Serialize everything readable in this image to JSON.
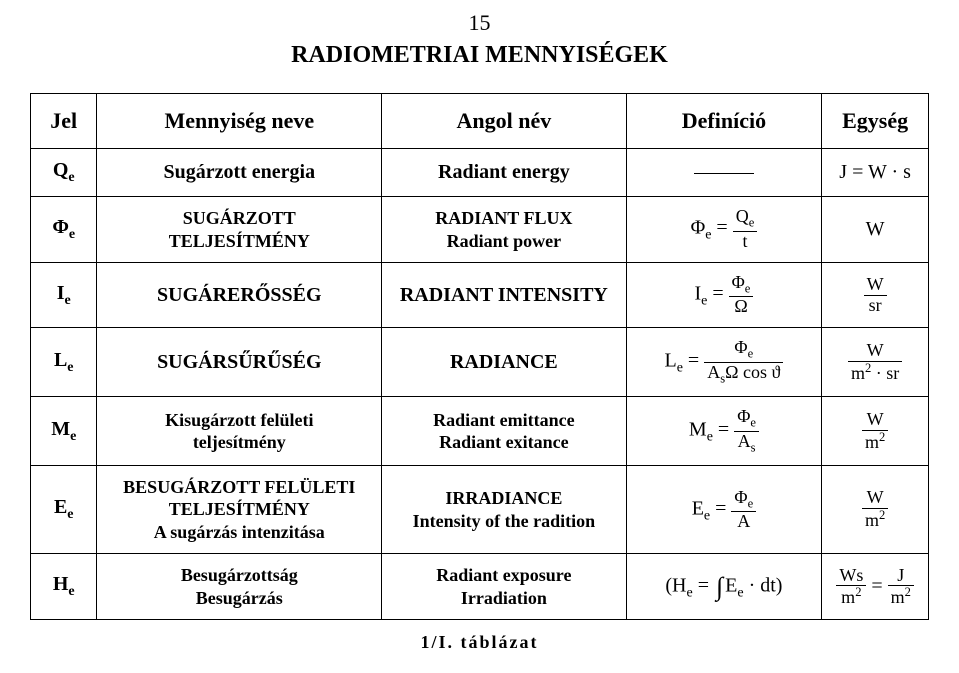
{
  "page_number": "15",
  "title": "RADIOMETRIAI MENNYISÉGEK",
  "headers": {
    "c1": "Jel",
    "c2": "Mennyiség neve",
    "c3": "Angol név",
    "c4": "Definíció",
    "c5": "Egység"
  },
  "rows": {
    "r1": {
      "sym": "Q",
      "sub": "e",
      "name": "Sugárzott energia",
      "en": "Radiant energy",
      "def_html": "",
      "unit_lhs": "J",
      "unit_rhs": "W · s"
    },
    "r2": {
      "sym": "Φ",
      "sub": "e",
      "name_l1": "SUGÁRZOTT",
      "name_l2": "TELJESÍTMÉNY",
      "en_l1": "RADIANT FLUX",
      "en_l2": "Radiant power",
      "def_lhs": "Φ",
      "def_sub": "e",
      "def_num": "Q",
      "def_num_sub": "e",
      "def_den": "t",
      "unit": "W"
    },
    "r3": {
      "sym": "I",
      "sub": "e",
      "name": "SUGÁRERŐSSÉG",
      "en": "RADIANT INTENSITY",
      "def_lhs": "I",
      "def_sub": "e",
      "def_num": "Φ",
      "def_num_sub": "e",
      "def_den": "Ω",
      "unit_num": "W",
      "unit_den": "sr"
    },
    "r4": {
      "sym": "L",
      "sub": "e",
      "name": "SUGÁRSŰRŰSÉG",
      "en": "RADIANCE",
      "def_lhs": "L",
      "def_sub": "e",
      "def_num": "Φ",
      "def_num_sub": "e",
      "def_den_l": "A",
      "def_den_sub": "s",
      "def_den_mid": "Ω cos",
      "def_den_r": "ϑ",
      "unit_num": "W",
      "unit_den_l": "m",
      "unit_den_exp": "2",
      "unit_den_r": " · sr"
    },
    "r5": {
      "sym": "M",
      "sub": "e",
      "name_l1": "Kisugárzott felületi",
      "name_l2": "teljesítmény",
      "en_l1": "Radiant emittance",
      "en_l2": "Radiant exitance",
      "def_lhs": "M",
      "def_sub": "e",
      "def_num": "Φ",
      "def_num_sub": "e",
      "def_den": "A",
      "def_den_sub": "s",
      "unit_num": "W",
      "unit_den_l": "m",
      "unit_den_exp": "2"
    },
    "r6": {
      "sym": "E",
      "sub": "e",
      "name_l1": "BESUGÁRZOTT FELÜLETI",
      "name_l2": "TELJESÍTMÉNY",
      "name_l3": "A sugárzás intenzitása",
      "en_l1": "IRRADIANCE",
      "en_l2": "Intensity of the radition",
      "def_lhs": "E",
      "def_sub": "e",
      "def_num": "Φ",
      "def_num_sub": "e",
      "def_den": "A",
      "unit_num": "W",
      "unit_den_l": "m",
      "unit_den_exp": "2"
    },
    "r7": {
      "sym": "H",
      "sub": "e",
      "name_l1": "Besugárzottság",
      "name_l2": "Besugárzás",
      "en_l1": "Radiant exposure",
      "en_l2": "Irradiation",
      "def_open": "(H",
      "def_sub": "e",
      "def_eq": " =",
      "def_var": "E",
      "def_var_sub": "e",
      "def_after": " · dt)",
      "unit1_num": "Ws",
      "unit1_den_l": "m",
      "unit1_den_exp": "2",
      "unit2_num": "J",
      "unit2_den_l": "m",
      "unit2_den_exp": "2"
    }
  },
  "footer": "1/I. táblázat"
}
